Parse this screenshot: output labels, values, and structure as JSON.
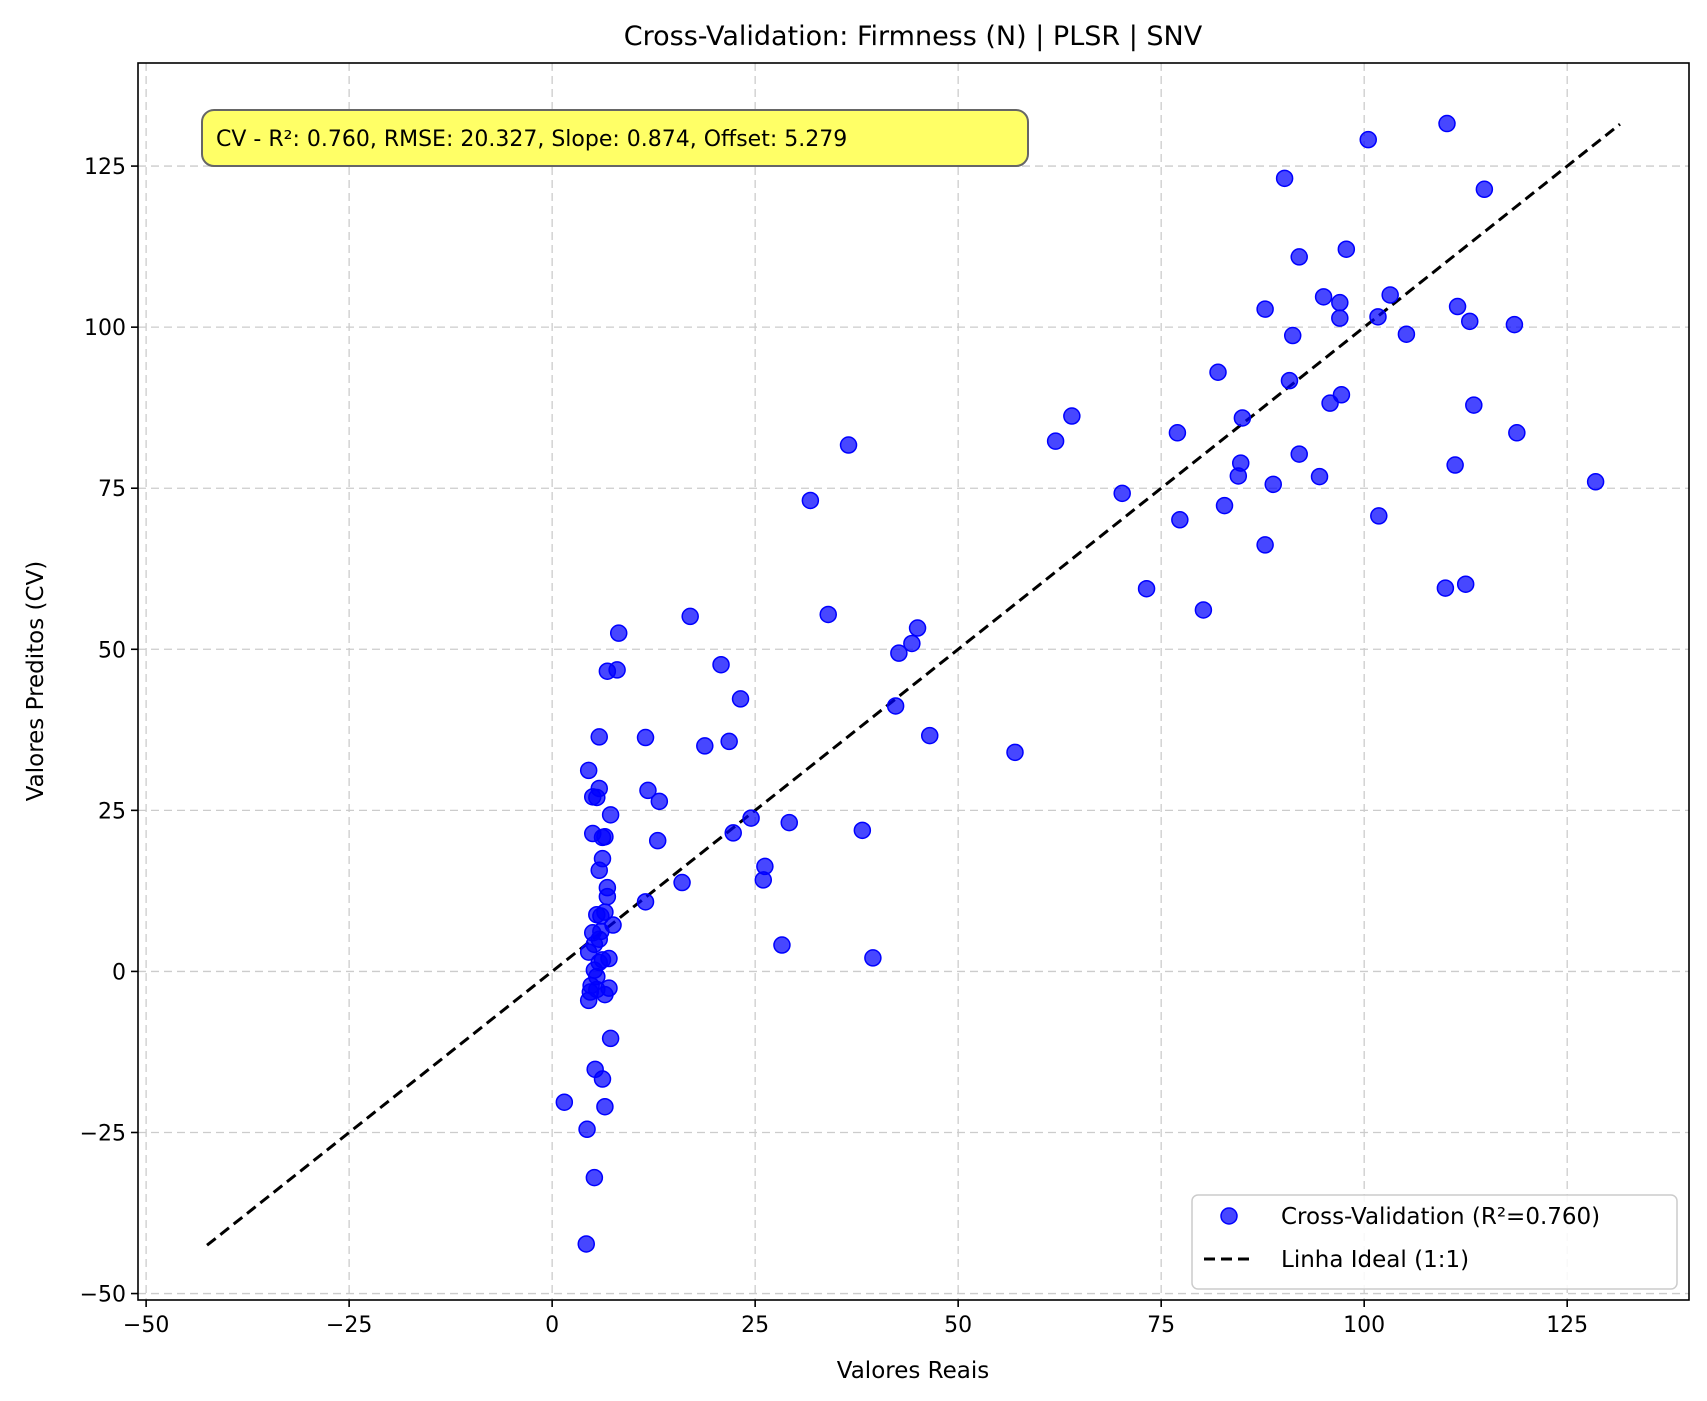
{
  "chart_data": {
    "type": "scatter",
    "title": "Cross-Validation: Firmness (N) | PLSR | SNV",
    "xlabel": "Valores Reais",
    "ylabel": "Valores Preditos (CV)",
    "xlim": [
      -51,
      140
    ],
    "ylim": [
      -51,
      141
    ],
    "xticks": [
      -50,
      -25,
      0,
      25,
      50,
      75,
      100,
      125
    ],
    "yticks": [
      -50,
      -25,
      0,
      25,
      50,
      75,
      100,
      125
    ],
    "xtick_labels": [
      "−50",
      "−25",
      "0",
      "25",
      "50",
      "75",
      "100",
      "125"
    ],
    "ytick_labels": [
      "−50",
      "−25",
      "0",
      "25",
      "50",
      "75",
      "100",
      "125"
    ],
    "grid": true,
    "legend_position": "lower-right",
    "annotation": "CV - R²: 0.760, RMSE: 20.327, Slope: 0.874, Offset: 5.279",
    "colors": {
      "points": "#0000ff",
      "ideal_line": "#000000",
      "annotation_bg": "#ffff66",
      "grid": "#cccccc"
    },
    "series": [
      {
        "name": "Cross-Validation (R²=0.760)",
        "kind": "scatter",
        "points": [
          [
            1.5,
            -20.3
          ],
          [
            4.2,
            -42.3
          ],
          [
            4.3,
            -24.5
          ],
          [
            5.2,
            -32
          ],
          [
            5.3,
            -15.2
          ],
          [
            6.2,
            -16.7
          ],
          [
            6.5,
            -21
          ],
          [
            7.2,
            -10.4
          ],
          [
            4.5,
            -4.5
          ],
          [
            4.7,
            -3.2
          ],
          [
            4.8,
            -2.2
          ],
          [
            5.5,
            -2.8
          ],
          [
            6.5,
            -3.6
          ],
          [
            7,
            -2.6
          ],
          [
            5.5,
            -0.8
          ],
          [
            5.2,
            0.2
          ],
          [
            5.8,
            1.4
          ],
          [
            6.2,
            1.8
          ],
          [
            7,
            2
          ],
          [
            4.5,
            3
          ],
          [
            5.2,
            4.2
          ],
          [
            5.8,
            5
          ],
          [
            6,
            6.2
          ],
          [
            5,
            6
          ],
          [
            7.5,
            7.2
          ],
          [
            5.5,
            8.8
          ],
          [
            6,
            8.6
          ],
          [
            6.5,
            9.2
          ],
          [
            6.8,
            11.6
          ],
          [
            6.8,
            13
          ],
          [
            5.8,
            15.7
          ],
          [
            6.2,
            17.5
          ],
          [
            6.5,
            20.9
          ],
          [
            6.2,
            20.8
          ],
          [
            5,
            21.4
          ],
          [
            7.2,
            24.3
          ],
          [
            5,
            27.1
          ],
          [
            5.5,
            27
          ],
          [
            5.8,
            28.4
          ],
          [
            4.5,
            31.2
          ],
          [
            5.8,
            36.4
          ],
          [
            6.8,
            46.6
          ],
          [
            8,
            46.8
          ],
          [
            8.2,
            52.5
          ],
          [
            11.5,
            36.3
          ],
          [
            11.8,
            28.1
          ],
          [
            11.5,
            10.8
          ],
          [
            13,
            20.3
          ],
          [
            13.2,
            26.4
          ],
          [
            16,
            13.8
          ],
          [
            17,
            55.1
          ],
          [
            18.8,
            35
          ],
          [
            20.8,
            47.6
          ],
          [
            21.8,
            35.7
          ],
          [
            22.3,
            21.5
          ],
          [
            23.2,
            42.3
          ],
          [
            24.5,
            23.8
          ],
          [
            26,
            14.2
          ],
          [
            26.2,
            16.3
          ],
          [
            28.3,
            4.1
          ],
          [
            29.2,
            23.1
          ],
          [
            31.8,
            73.1
          ],
          [
            34,
            55.4
          ],
          [
            36.5,
            81.7
          ],
          [
            38.2,
            21.9
          ],
          [
            39.5,
            2.1
          ],
          [
            42.3,
            41.2
          ],
          [
            42.7,
            49.4
          ],
          [
            44.3,
            50.9
          ],
          [
            45,
            53.3
          ],
          [
            46.5,
            36.6
          ],
          [
            57,
            34
          ],
          [
            62,
            82.3
          ],
          [
            64,
            86.2
          ],
          [
            70.2,
            74.2
          ],
          [
            73.2,
            59.4
          ],
          [
            77,
            83.6
          ],
          [
            77.3,
            70.1
          ],
          [
            80.2,
            56.1
          ],
          [
            82,
            93
          ],
          [
            82.8,
            72.3
          ],
          [
            84.5,
            76.9
          ],
          [
            84.8,
            78.9
          ],
          [
            85,
            85.9
          ],
          [
            87.8,
            102.8
          ],
          [
            88.8,
            75.6
          ],
          [
            87.8,
            66.2
          ],
          [
            90.2,
            123.1
          ],
          [
            90.8,
            91.7
          ],
          [
            91.2,
            98.7
          ],
          [
            92,
            80.3
          ],
          [
            92,
            110.9
          ],
          [
            94.5,
            76.8
          ],
          [
            95,
            104.7
          ],
          [
            95.8,
            88.2
          ],
          [
            97,
            103.8
          ],
          [
            97,
            101.4
          ],
          [
            97.2,
            89.5
          ],
          [
            97.8,
            112.1
          ],
          [
            100.5,
            129.1
          ],
          [
            101.7,
            101.6
          ],
          [
            101.8,
            70.7
          ],
          [
            103.2,
            105
          ],
          [
            105.2,
            98.9
          ],
          [
            110.2,
            131.6
          ],
          [
            110,
            59.5
          ],
          [
            111.2,
            78.6
          ],
          [
            111.5,
            103.2
          ],
          [
            112.5,
            60.1
          ],
          [
            113,
            100.9
          ],
          [
            113.5,
            87.9
          ],
          [
            114.8,
            121.4
          ],
          [
            118.5,
            100.4
          ],
          [
            118.8,
            83.6
          ],
          [
            128.5,
            76
          ]
        ]
      },
      {
        "name": "Linha Ideal (1:1)",
        "kind": "line",
        "style": "dashed",
        "points": [
          [
            -42.5,
            -42.5
          ],
          [
            131.5,
            131.5
          ]
        ]
      }
    ]
  }
}
